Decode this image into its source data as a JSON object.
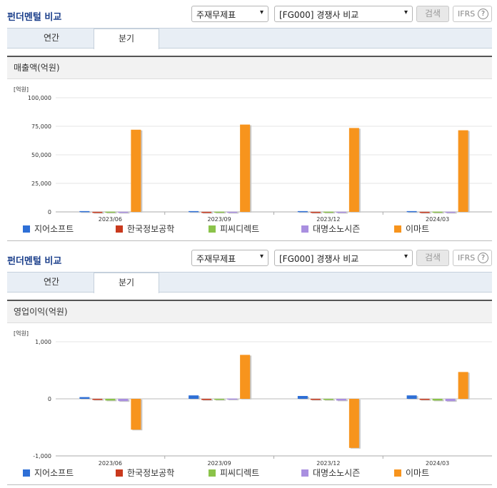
{
  "panels": [
    {
      "header": {
        "title": "펀더멘털 비교",
        "select1": "주재무제표",
        "select2": "[FG000] 경쟁사 비교",
        "search_label": "검색",
        "ifrs_label": "IFRS",
        "help_label": "?"
      },
      "tabs": [
        {
          "label": "연간"
        },
        {
          "label": "분기"
        }
      ],
      "chart_title": "매출액(억원)",
      "unit_label": "[억원]"
    },
    {
      "header": {
        "title": "펀더멘털 비교",
        "select1": "주재무제표",
        "select2": "[FG000] 경쟁사 비교",
        "search_label": "검색",
        "ifrs_label": "IFRS",
        "help_label": "?"
      },
      "tabs": [
        {
          "label": "연간"
        },
        {
          "label": "분기"
        }
      ],
      "chart_title": "영업이익(억원)",
      "unit_label": "[억원]"
    }
  ],
  "chart_data": [
    {
      "type": "bar",
      "title": "매출액(억원)",
      "ylabel": "[억원]",
      "ylim": [
        0,
        100000
      ],
      "yticks": [
        0,
        25000,
        50000,
        75000,
        100000
      ],
      "ytick_labels": [
        "0",
        "25,000",
        "50,000",
        "75,000",
        "100,000"
      ],
      "categories": [
        "2023/06",
        "2023/09",
        "2023/12",
        "2024/03"
      ],
      "series": [
        {
          "name": "지어소프트",
          "color": "#2e6fd6",
          "values": [
            700,
            700,
            700,
            700
          ]
        },
        {
          "name": "한국정보공학",
          "color": "#c9391d",
          "values": [
            50,
            50,
            50,
            50
          ]
        },
        {
          "name": "피씨디렉트",
          "color": "#8bc34a",
          "values": [
            200,
            200,
            200,
            200
          ]
        },
        {
          "name": "대명소노시즌",
          "color": "#a98fe0",
          "values": [
            100,
            100,
            100,
            100
          ]
        },
        {
          "name": "이마트",
          "color": "#f7941d",
          "values": [
            72000,
            76500,
            73500,
            71500
          ]
        }
      ],
      "legend": "bottom"
    },
    {
      "type": "bar",
      "title": "영업이익(억원)",
      "ylabel": "[억원]",
      "ylim": [
        -1000,
        1000
      ],
      "yticks": [
        -1000,
        0,
        1000
      ],
      "ytick_labels": [
        "-1,000",
        "0",
        "1,000"
      ],
      "categories": [
        "2023/06",
        "2023/09",
        "2023/12",
        "2024/03"
      ],
      "series": [
        {
          "name": "지어소프트",
          "color": "#2e6fd6",
          "values": [
            30,
            60,
            50,
            60
          ]
        },
        {
          "name": "한국정보공학",
          "color": "#c9391d",
          "values": [
            -10,
            -20,
            -5,
            -5
          ]
        },
        {
          "name": "피씨디렉트",
          "color": "#8bc34a",
          "values": [
            -30,
            -10,
            -20,
            -30
          ]
        },
        {
          "name": "대명소노시즌",
          "color": "#a98fe0",
          "values": [
            -40,
            5,
            -30,
            -40
          ]
        },
        {
          "name": "이마트",
          "color": "#f7941d",
          "values": [
            -540,
            770,
            -860,
            470
          ]
        }
      ],
      "legend": "bottom"
    }
  ]
}
